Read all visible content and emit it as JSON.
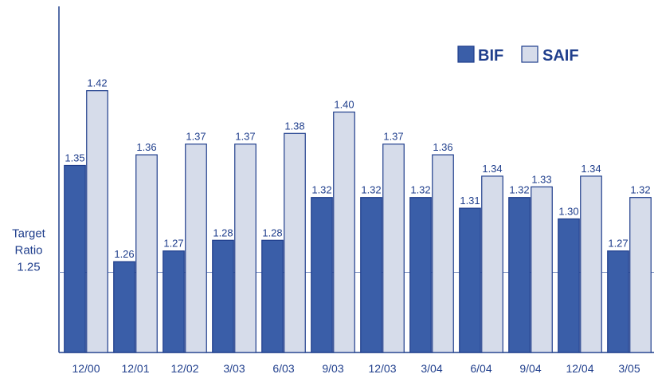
{
  "chart_data": {
    "type": "bar",
    "categories": [
      "12/00",
      "12/01",
      "12/02",
      "3/03",
      "6/03",
      "9/03",
      "12/03",
      "3/04",
      "6/04",
      "9/04",
      "12/04",
      "3/05"
    ],
    "series": [
      {
        "name": "BIF",
        "values": [
          1.35,
          1.26,
          1.27,
          1.28,
          1.28,
          1.32,
          1.32,
          1.32,
          1.31,
          1.32,
          1.3,
          1.27
        ]
      },
      {
        "name": "SAIF",
        "values": [
          1.42,
          1.36,
          1.37,
          1.37,
          1.38,
          1.4,
          1.37,
          1.36,
          1.34,
          1.33,
          1.34,
          1.32
        ]
      }
    ],
    "value_labels": {
      "BIF": [
        "1.35",
        "1.26",
        "1.27",
        "1.28",
        "1.28",
        "1.32",
        "1.32",
        "1.32",
        "1.31",
        "1.32",
        "1.30",
        "1.27"
      ],
      "SAIF": [
        "1.42",
        "1.36",
        "1.37",
        "1.37",
        "1.38",
        "1.40",
        "1.37",
        "1.36",
        "1.34",
        "1.33",
        "1.34",
        "1.32"
      ]
    },
    "reference_line": {
      "value": 1.25,
      "label_lines": [
        "Target",
        "Ratio",
        "1.25"
      ]
    },
    "legend": {
      "position": "top-right",
      "entries": [
        "BIF",
        "SAIF"
      ]
    },
    "ylim": [
      1.175,
      1.46
    ],
    "grid": false,
    "colors": {
      "BIF": "#3a5ea8",
      "SAIF": "#d6dcea",
      "outline": "#1f3e8c",
      "axis": "#1f3e8c",
      "reference": "#7b8fbf"
    }
  }
}
